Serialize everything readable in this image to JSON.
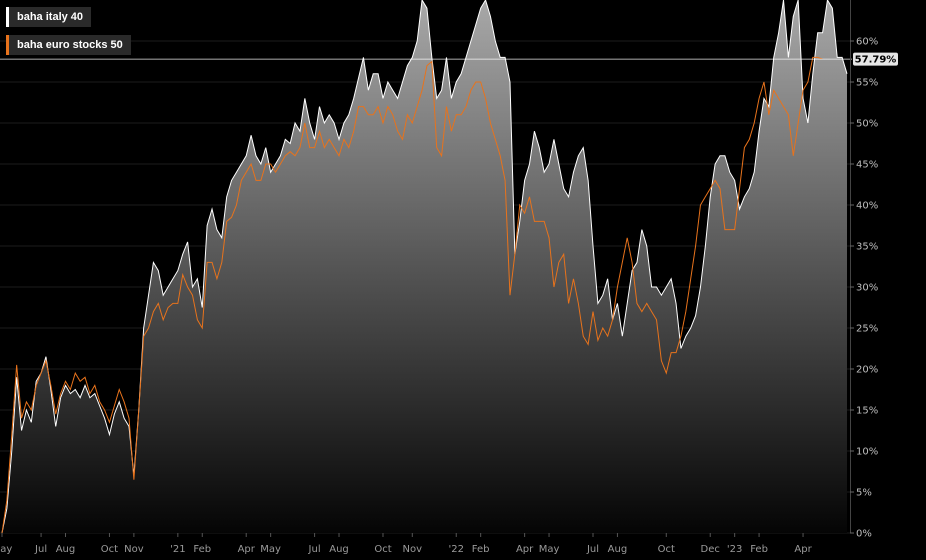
{
  "chart_data": {
    "type": "area",
    "ylim": [
      0,
      65
    ],
    "yticks": [
      0,
      5,
      10,
      15,
      20,
      25,
      30,
      35,
      40,
      45,
      50,
      55,
      60
    ],
    "ytick_labels": [
      "0%",
      "5%",
      "10%",
      "15%",
      "20%",
      "25%",
      "30%",
      "35%",
      "40%",
      "45%",
      "50%",
      "55%",
      "60%"
    ],
    "xticks": [
      {
        "label": "May",
        "x": 0
      },
      {
        "label": "Jul",
        "x": 8
      },
      {
        "label": "Aug",
        "x": 13
      },
      {
        "label": "Oct",
        "x": 22
      },
      {
        "label": "Nov",
        "x": 27
      },
      {
        "label": "'21",
        "x": 36
      },
      {
        "label": "Feb",
        "x": 41
      },
      {
        "label": "Apr",
        "x": 50
      },
      {
        "label": "May",
        "x": 55
      },
      {
        "label": "Jul",
        "x": 64
      },
      {
        "label": "Aug",
        "x": 69
      },
      {
        "label": "Oct",
        "x": 78
      },
      {
        "label": "Nov",
        "x": 84
      },
      {
        "label": "'22",
        "x": 93
      },
      {
        "label": "Feb",
        "x": 98
      },
      {
        "label": "Apr",
        "x": 107
      },
      {
        "label": "May",
        "x": 112
      },
      {
        "label": "Jul",
        "x": 121
      },
      {
        "label": "Aug",
        "x": 126
      },
      {
        "label": "Oct",
        "x": 136
      },
      {
        "label": "Dec",
        "x": 145
      },
      {
        "label": "'23",
        "x": 150
      },
      {
        "label": "Feb",
        "x": 155
      },
      {
        "label": "Apr",
        "x": 164
      }
    ],
    "last_value_label": "57.79%",
    "last_value": 57.79,
    "series": [
      {
        "name": "baha italy 40",
        "color": "#ffffff",
        "fill": true,
        "values": [
          0,
          3,
          10,
          19,
          12.5,
          15,
          13.5,
          18.5,
          19.5,
          21.5,
          17.5,
          13,
          16.5,
          18,
          17,
          17.5,
          16.5,
          18,
          16.5,
          17,
          15.5,
          14,
          12,
          14.5,
          16,
          14,
          13,
          7,
          15,
          25,
          29,
          33,
          32,
          29,
          30,
          31,
          32,
          34,
          35.5,
          30,
          31,
          27.5,
          37.5,
          39.5,
          37,
          36,
          41,
          43,
          44,
          45,
          46,
          48.5,
          46,
          45,
          47,
          44,
          45,
          46,
          48,
          47.5,
          50,
          49,
          53,
          50,
          48,
          52,
          50,
          51,
          50,
          48,
          50,
          51,
          53,
          55.5,
          58,
          54,
          56,
          56,
          53,
          55,
          54,
          53,
          55,
          57,
          58,
          60,
          65,
          64,
          58,
          53,
          54,
          58,
          53,
          55,
          56,
          58,
          60,
          62,
          64,
          65,
          63,
          60,
          58,
          58,
          55,
          34,
          38,
          43,
          45,
          49,
          47,
          44,
          45,
          48,
          45,
          42,
          41,
          44,
          46,
          47,
          43,
          35,
          28,
          29,
          31,
          26,
          28,
          24,
          28,
          32,
          33,
          37,
          35,
          30,
          30,
          29,
          30,
          31,
          28,
          22.5,
          24,
          25,
          26.5,
          30,
          35,
          41,
          45,
          46,
          46,
          44,
          43,
          39.5,
          41,
          42,
          44,
          49,
          53,
          52,
          58,
          61,
          65,
          58,
          63,
          65,
          53,
          50,
          56,
          61,
          61,
          65,
          64,
          58,
          58,
          56
        ]
      },
      {
        "name": "baha euro stocks 50",
        "color": "#e8731c",
        "fill": false,
        "values": [
          0,
          4,
          12,
          20.5,
          14,
          16,
          15,
          18,
          19.5,
          21,
          18,
          14.5,
          17,
          18.5,
          17.5,
          19.5,
          18.5,
          19,
          17,
          18,
          16,
          15,
          13.5,
          15.5,
          17.5,
          16,
          14,
          6.5,
          15,
          24,
          25,
          27,
          28,
          26,
          27.5,
          28,
          28,
          31.5,
          30,
          29,
          26,
          25,
          33,
          33,
          31,
          33,
          38,
          38.5,
          40,
          43,
          44,
          45,
          43,
          43,
          45,
          45,
          44,
          45,
          46,
          46.5,
          46,
          47,
          50,
          47,
          47,
          49,
          47,
          48,
          47,
          46,
          48,
          47,
          49,
          52,
          52,
          51,
          51,
          52,
          50,
          52,
          51,
          49,
          48,
          51,
          50,
          52,
          54,
          57,
          57.5,
          47,
          46,
          52,
          49,
          51,
          51,
          52,
          54,
          55,
          55,
          53,
          50,
          48,
          46,
          43,
          29,
          34,
          40,
          39,
          41,
          38,
          38,
          38,
          36,
          30,
          33,
          34,
          28,
          31,
          28,
          24,
          23,
          27,
          23.5,
          25,
          24,
          26,
          30,
          33,
          36,
          33,
          28,
          27,
          28,
          27,
          26,
          21,
          19.5,
          22,
          22,
          24,
          27,
          31,
          35,
          40,
          41,
          42,
          43,
          42,
          37,
          37,
          37,
          42,
          47,
          48,
          50,
          53,
          55,
          51,
          54,
          53,
          52,
          51,
          46,
          50,
          54,
          55,
          58,
          58,
          57.79
        ]
      }
    ]
  }
}
